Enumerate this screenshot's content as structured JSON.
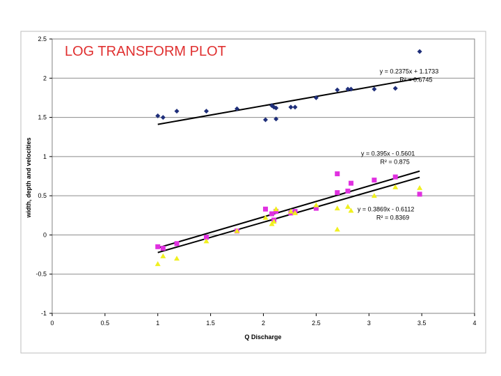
{
  "chart_data": {
    "type": "scatter",
    "title": "LOG TRANSFORM PLOT",
    "xlabel": "Q  Discharge",
    "ylabel": "width, depth and velocities",
    "xlim": [
      0,
      4
    ],
    "ylim": [
      -1,
      2.5
    ],
    "xticks": [
      "0",
      "0.5",
      "1",
      "1.5",
      "2",
      "2.5",
      "3",
      "3.5",
      "4"
    ],
    "yticks": [
      "-1",
      "-0.5",
      "0",
      "0.5",
      "1",
      "1.5",
      "2",
      "2.5"
    ],
    "grid": "horizontal",
    "series": [
      {
        "marker": "diamond",
        "color": "#1f2f7a",
        "points": [
          [
            1.0,
            1.52
          ],
          [
            1.05,
            1.5
          ],
          [
            1.18,
            1.58
          ],
          [
            1.46,
            1.58
          ],
          [
            1.75,
            1.61
          ],
          [
            2.02,
            1.47
          ],
          [
            2.08,
            1.65
          ],
          [
            2.1,
            1.63
          ],
          [
            2.12,
            1.62
          ],
          [
            2.12,
            1.48
          ],
          [
            2.26,
            1.63
          ],
          [
            2.3,
            1.63
          ],
          [
            2.5,
            1.75
          ],
          [
            2.7,
            1.85
          ],
          [
            2.8,
            1.86
          ],
          [
            2.83,
            1.86
          ],
          [
            3.05,
            1.86
          ],
          [
            3.25,
            1.87
          ],
          [
            3.48,
            2.34
          ]
        ],
        "trendline": {
          "slope": 0.2375,
          "intercept": 1.1733,
          "x_range": [
            1.0,
            3.48
          ]
        },
        "equation": "y = 0.2375x + 1.1733",
        "r2_label": "R² = 0.6745"
      },
      {
        "marker": "square",
        "color": "#e030e0",
        "points": [
          [
            1.0,
            -0.15
          ],
          [
            1.05,
            -0.17
          ],
          [
            1.18,
            -0.11
          ],
          [
            1.46,
            -0.03
          ],
          [
            1.75,
            0.05
          ],
          [
            2.02,
            0.33
          ],
          [
            2.08,
            0.27
          ],
          [
            2.1,
            0.19
          ],
          [
            2.12,
            0.3
          ],
          [
            2.26,
            0.28
          ],
          [
            2.3,
            0.3
          ],
          [
            2.5,
            0.34
          ],
          [
            2.7,
            0.78
          ],
          [
            2.7,
            0.54
          ],
          [
            2.8,
            0.56
          ],
          [
            2.83,
            0.66
          ],
          [
            3.05,
            0.7
          ],
          [
            3.25,
            0.74
          ],
          [
            3.48,
            0.52
          ]
        ],
        "trendline": {
          "slope": 0.395,
          "intercept": -0.5601,
          "x_range": [
            1.0,
            3.48
          ]
        },
        "equation": "y = 0.395x - 0.5601",
        "r2_label": "R² = 0.875"
      },
      {
        "marker": "triangle",
        "color": "#f0f020",
        "points": [
          [
            1.0,
            -0.37
          ],
          [
            1.05,
            -0.27
          ],
          [
            1.18,
            -0.3
          ],
          [
            1.46,
            -0.08
          ],
          [
            1.75,
            0.05
          ],
          [
            2.02,
            0.22
          ],
          [
            2.08,
            0.14
          ],
          [
            2.1,
            0.17
          ],
          [
            2.12,
            0.33
          ],
          [
            2.26,
            0.3
          ],
          [
            2.3,
            0.28
          ],
          [
            2.5,
            0.38
          ],
          [
            2.7,
            0.34
          ],
          [
            2.7,
            0.07
          ],
          [
            2.8,
            0.36
          ],
          [
            2.83,
            0.31
          ],
          [
            3.05,
            0.5
          ],
          [
            3.25,
            0.61
          ],
          [
            3.48,
            0.6
          ]
        ],
        "trendline": {
          "slope": 0.3869,
          "intercept": -0.6112,
          "x_range": [
            1.0,
            3.48
          ]
        },
        "equation": "y = 0.3869x - 0.6112",
        "r2_label": "R² = 0.8369"
      }
    ],
    "annotations": [
      {
        "series": 0,
        "x": 3.38,
        "y": 2.06
      },
      {
        "series": 1,
        "x": 3.18,
        "y": 1.01
      },
      {
        "series": 2,
        "x": 3.16,
        "y": 0.3
      }
    ]
  }
}
